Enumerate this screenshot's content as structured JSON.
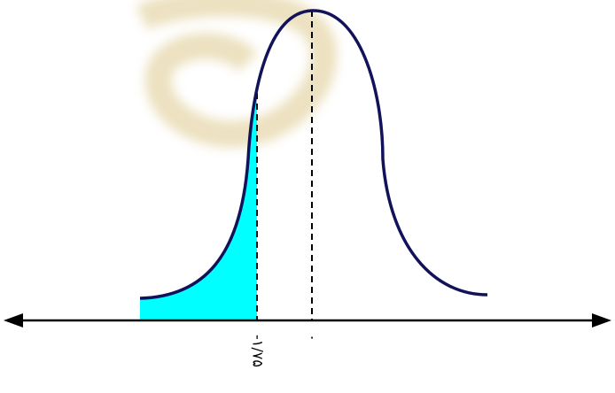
{
  "labels": {
    "cutoff": "-۱/۷۵",
    "mean": "۰"
  }
}
